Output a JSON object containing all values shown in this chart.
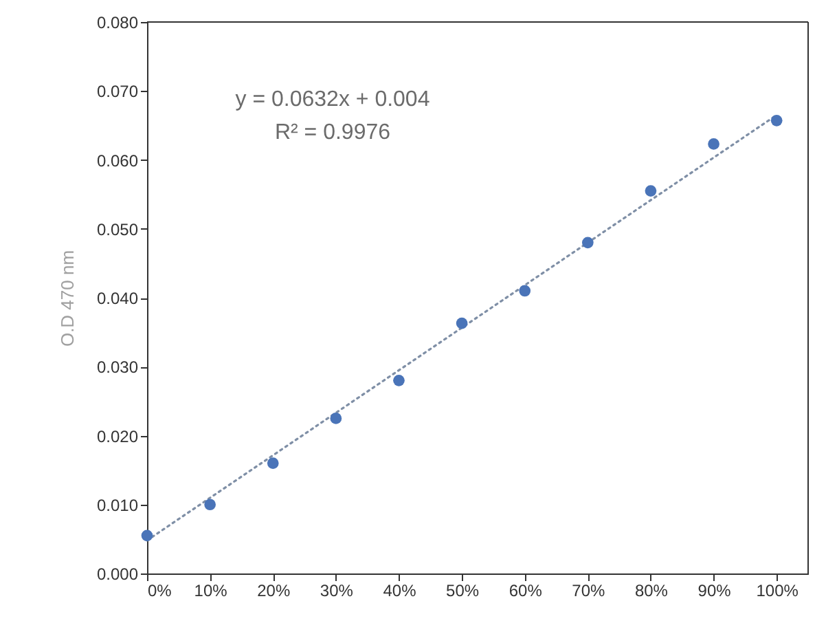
{
  "chart_data": {
    "type": "scatter",
    "ylabel": "O.D 470 nm",
    "annotations": [
      "y = 0.0632x + 0.004",
      "R² = 0.9976"
    ],
    "xlim": [
      0,
      1.05
    ],
    "xticks": [
      {
        "value": 0,
        "label": "0%"
      },
      {
        "value": 0.1,
        "label": "10%"
      },
      {
        "value": 0.2,
        "label": "20%"
      },
      {
        "value": 0.3,
        "label": "30%"
      },
      {
        "value": 0.4,
        "label": "40%"
      },
      {
        "value": 0.5,
        "label": "50%"
      },
      {
        "value": 0.6,
        "label": "60%"
      },
      {
        "value": 0.7,
        "label": "70%"
      },
      {
        "value": 0.8,
        "label": "80%"
      },
      {
        "value": 0.9,
        "label": "90%"
      },
      {
        "value": 1,
        "label": "100%"
      }
    ],
    "ylim": [
      0,
      0.08
    ],
    "yticks": [
      {
        "value": 0,
        "label": "0.000"
      },
      {
        "value": 0.01,
        "label": "0.010"
      },
      {
        "value": 0.02,
        "label": "0.020"
      },
      {
        "value": 0.03,
        "label": "0.030"
      },
      {
        "value": 0.04,
        "label": "0.040"
      },
      {
        "value": 0.05,
        "label": "0.050"
      },
      {
        "value": 0.06,
        "label": "0.060"
      },
      {
        "value": 0.07,
        "label": "0.070"
      },
      {
        "value": 0.08,
        "label": "0.080"
      }
    ],
    "grid": false,
    "series": [
      {
        "marker": "circle",
        "color": "#4a74b8",
        "x": [
          0,
          0.1,
          0.2,
          0.3,
          0.4,
          0.5,
          0.6,
          0.7,
          0.8,
          0.9,
          1
        ],
        "values": [
          0.0055,
          0.01,
          0.016,
          0.0225,
          0.028,
          0.0363,
          0.041,
          0.048,
          0.0555,
          0.0623,
          0.0657
        ]
      },
      {
        "type": "line",
        "color": "#7f8fa6",
        "line_style": "dotted",
        "x": [
          0,
          1
        ],
        "values": [
          0.0048,
          0.0665
        ]
      }
    ]
  }
}
